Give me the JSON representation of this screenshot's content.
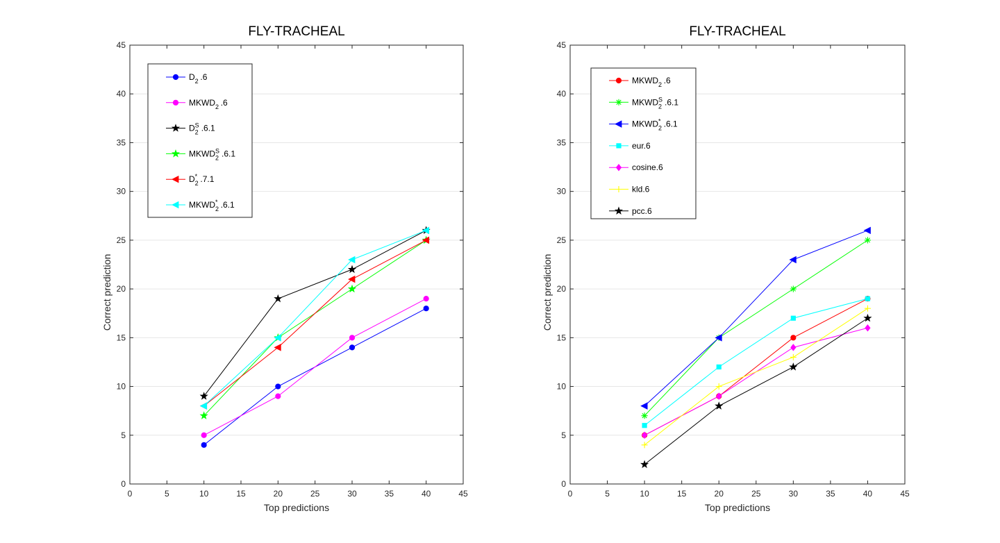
{
  "chart_data": [
    {
      "type": "line",
      "title": "FLY-TRACHEAL",
      "xlabel": "Top predictions",
      "ylabel": "Correct prediction",
      "xlim": [
        0,
        45
      ],
      "ylim": [
        0,
        45
      ],
      "xticks": [
        0,
        5,
        10,
        15,
        20,
        25,
        30,
        35,
        40,
        45
      ],
      "yticks": [
        0,
        5,
        10,
        15,
        20,
        25,
        30,
        35,
        40,
        45
      ],
      "grid": "horizontal",
      "legend_position": "top-left",
      "x": [
        10,
        20,
        30,
        40
      ],
      "series": [
        {
          "name": "D2.6",
          "legend": {
            "base": "D",
            "sub": "2",
            "sup": "",
            "suffix": ".6"
          },
          "color": "#0000ff",
          "marker": "circle",
          "values": [
            4,
            10,
            14,
            18
          ]
        },
        {
          "name": "MKWD2.6",
          "legend": {
            "base": "MKWD",
            "sub": "2",
            "sup": "",
            "suffix": ".6"
          },
          "color": "#ff00ff",
          "marker": "circle",
          "values": [
            5,
            9,
            15,
            19
          ]
        },
        {
          "name": "D2S.6.1",
          "legend": {
            "base": "D",
            "sub": "2",
            "sup": "S",
            "suffix": ".6.1"
          },
          "color": "#000000",
          "marker": "pentagram",
          "values": [
            9,
            19,
            22,
            26
          ]
        },
        {
          "name": "MKWD2S.6.1",
          "legend": {
            "base": "MKWD",
            "sub": "2",
            "sup": "S",
            "suffix": ".6.1"
          },
          "color": "#00ff00",
          "marker": "pentagram",
          "values": [
            7,
            15,
            20,
            25
          ]
        },
        {
          "name": "D2*.7.1",
          "legend": {
            "base": "D",
            "sub": "2",
            "sup": "*",
            "suffix": ".7.1"
          },
          "color": "#ff0000",
          "marker": "triangle-left",
          "values": [
            8,
            14,
            21,
            25
          ]
        },
        {
          "name": "MKWD2*.6.1",
          "legend": {
            "base": "MKWD",
            "sub": "2",
            "sup": "*",
            "suffix": ".6.1"
          },
          "color": "#00ffff",
          "marker": "triangle-left",
          "values": [
            8,
            15,
            23,
            26
          ]
        }
      ]
    },
    {
      "type": "line",
      "title": "FLY-TRACHEAL",
      "xlabel": "Top predictions",
      "ylabel": "Correct prediction",
      "xlim": [
        0,
        45
      ],
      "ylim": [
        0,
        45
      ],
      "xticks": [
        0,
        5,
        10,
        15,
        20,
        25,
        30,
        35,
        40,
        45
      ],
      "yticks": [
        0,
        5,
        10,
        15,
        20,
        25,
        30,
        35,
        40,
        45
      ],
      "grid": "horizontal",
      "legend_position": "top-left",
      "x": [
        10,
        20,
        30,
        40
      ],
      "series": [
        {
          "name": "MKWD2.6",
          "legend": {
            "base": "MKWD",
            "sub": "2",
            "sup": "",
            "suffix": ".6"
          },
          "color": "#ff0000",
          "marker": "circle",
          "values": [
            5,
            9,
            15,
            19
          ]
        },
        {
          "name": "MKWD2S.6.1",
          "legend": {
            "base": "MKWD",
            "sub": "2",
            "sup": "S",
            "suffix": ".6.1"
          },
          "color": "#00ff00",
          "marker": "asterisk",
          "values": [
            7,
            15,
            20,
            25
          ]
        },
        {
          "name": "MKWD2*.6.1",
          "legend": {
            "base": "MKWD",
            "sub": "2",
            "sup": "*",
            "suffix": ".6.1"
          },
          "color": "#0000ff",
          "marker": "triangle-left",
          "values": [
            8,
            15,
            23,
            26
          ]
        },
        {
          "name": "eur.6",
          "legend": {
            "base": "eur.6",
            "sub": "",
            "sup": "",
            "suffix": ""
          },
          "color": "#00ffff",
          "marker": "square",
          "values": [
            6,
            12,
            17,
            19
          ]
        },
        {
          "name": "cosine.6",
          "legend": {
            "base": "cosine.6",
            "sub": "",
            "sup": "",
            "suffix": ""
          },
          "color": "#ff00ff",
          "marker": "diamond",
          "values": [
            5,
            9,
            14,
            16
          ]
        },
        {
          "name": "kld.6",
          "legend": {
            "base": "kld.6",
            "sub": "",
            "sup": "",
            "suffix": ""
          },
          "color": "#ffff00",
          "marker": "plus",
          "values": [
            4,
            10,
            13,
            18
          ]
        },
        {
          "name": "pcc.6",
          "legend": {
            "base": "pcc.6",
            "sub": "",
            "sup": "",
            "suffix": ""
          },
          "color": "#000000",
          "marker": "pentagram",
          "values": [
            2,
            8,
            12,
            17
          ]
        }
      ]
    }
  ]
}
